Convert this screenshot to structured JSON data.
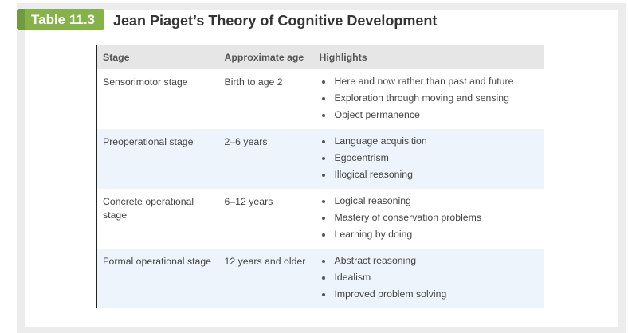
{
  "header": {
    "badge": "Table 11.3",
    "title": "Jean Piaget’s Theory of Cognitive Development"
  },
  "table": {
    "columns": [
      "Stage",
      "Approximate age",
      "Highlights"
    ],
    "rows": [
      {
        "stage": "Sensorimotor stage",
        "age": "Birth to age 2",
        "highlights": [
          "Here and now rather than past and future",
          "Exploration through moving and sensing",
          "Object permanence"
        ]
      },
      {
        "stage": "Preoperational stage",
        "age": "2–6 years",
        "highlights": [
          "Language acquisition",
          "Egocentrism",
          "Illogical reasoning"
        ]
      },
      {
        "stage": "Concrete operational stage",
        "age": "6–12 years",
        "highlights": [
          "Logical reasoning",
          "Mastery of conservation problems",
          "Learning by doing"
        ]
      },
      {
        "stage": "Formal operational stage",
        "age": "12 years and older",
        "highlights": [
          "Abstract reasoning",
          "Idealism",
          "Improved problem solving"
        ]
      }
    ]
  },
  "colors": {
    "badge": "#86b24a",
    "badge_dark": "#6f9a3f",
    "alt_row": "#edf4fb",
    "header_row": "#e6e6e6"
  }
}
